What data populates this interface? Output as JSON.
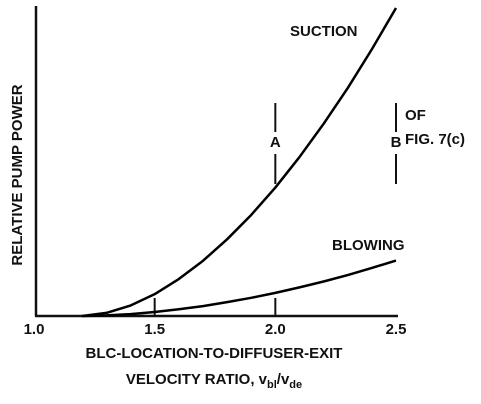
{
  "chart_data": {
    "type": "line",
    "ylabel": "RELATIVE PUMP POWER",
    "xlabel_line1": "BLC-LOCATION-TO-DIFFUSER-EXIT",
    "xlabel_line2": {
      "text": "VELOCITY RATIO, v",
      "sub1": "bl",
      "mid": "/v",
      "sub2": "de"
    },
    "x": [
      1.2,
      1.3,
      1.4,
      1.5,
      1.6,
      1.7,
      1.8,
      1.9,
      2.0,
      2.1,
      2.2,
      2.3,
      2.4,
      2.5
    ],
    "series": [
      {
        "name": "SUCTION",
        "color": "#000000",
        "values": [
          0,
          0.01,
          0.034,
          0.071,
          0.12,
          0.179,
          0.249,
          0.328,
          0.417,
          0.516,
          0.624,
          0.74,
          0.866,
          1.0
        ]
      },
      {
        "name": "BLOWING",
        "color": "#000000",
        "values": [
          0,
          0.002,
          0.006,
          0.013,
          0.022,
          0.032,
          0.045,
          0.059,
          0.075,
          0.093,
          0.112,
          0.133,
          0.156,
          0.18
        ]
      }
    ],
    "markers": [
      {
        "label": "A",
        "x": 2.0
      },
      {
        "label": "B",
        "x": 2.5
      }
    ],
    "marker_note": [
      "OF",
      "FIG. 7(c)"
    ],
    "xlim": [
      1.0,
      2.5
    ],
    "xticks": [
      {
        "value": 1.0,
        "label": "1.0"
      },
      1.5,
      {
        "value": 2.0,
        "label": "2.0"
      },
      2.5
    ],
    "ylim": [
      0,
      1
    ]
  }
}
